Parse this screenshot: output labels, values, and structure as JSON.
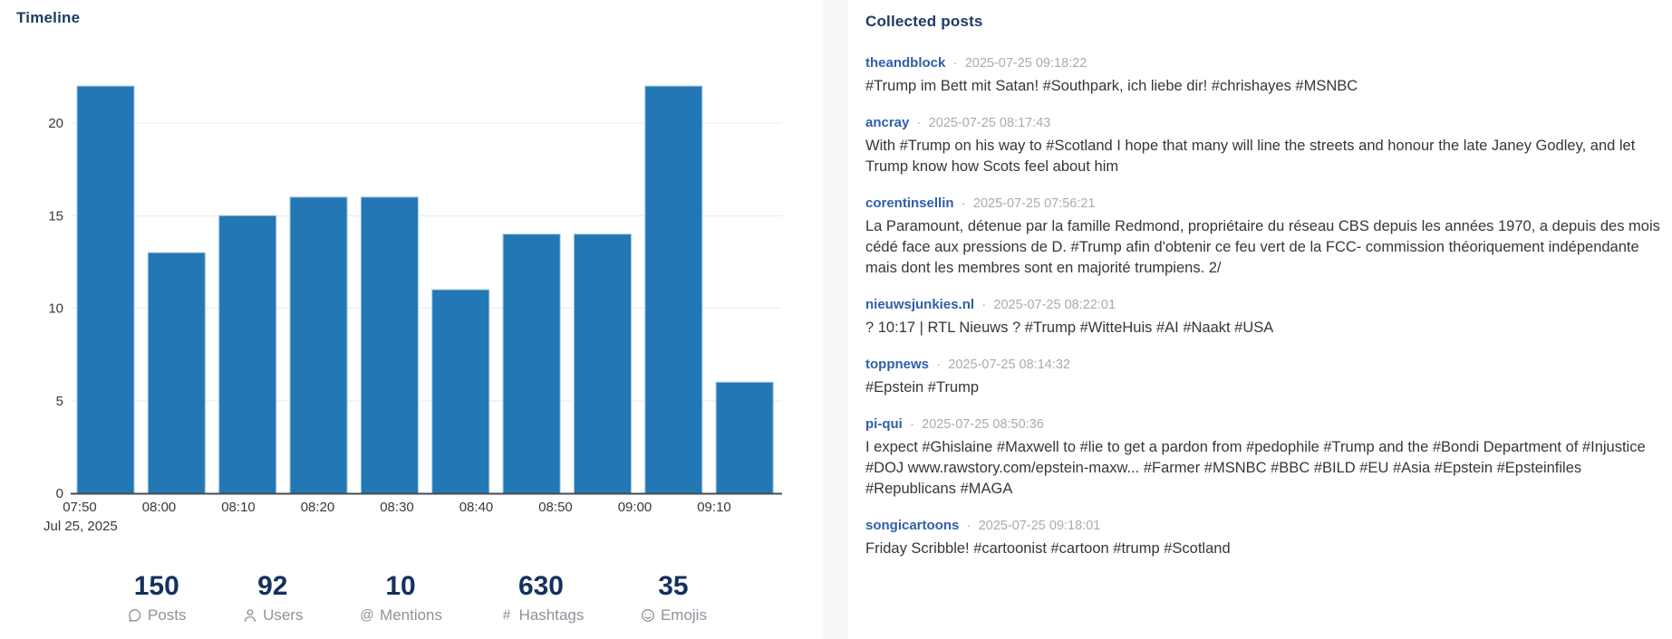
{
  "chart_data": {
    "type": "bar",
    "title": "Timeline",
    "values": [
      22,
      13,
      15,
      16,
      16,
      11,
      14,
      14,
      22,
      6
    ],
    "x_tick_labels": [
      "07:50",
      "08:00",
      "08:10",
      "08:20",
      "08:30",
      "08:40",
      "08:50",
      "09:00",
      "09:10"
    ],
    "x_date_label": "Jul 25, 2025",
    "y_ticks": [
      0,
      5,
      10,
      15,
      20
    ],
    "ylim": [
      0,
      23
    ],
    "grid": true,
    "legend": "none",
    "bar_color": "#2277b4",
    "bar_edge_color": "#9fc6e0",
    "grid_color": "#e8eaed",
    "axis_line_color": "#444b54",
    "tick_label_color": "#333a42"
  },
  "stats": [
    {
      "value": "150",
      "label": "Posts",
      "icon": "speech-bubble-icon"
    },
    {
      "value": "92",
      "label": "Users",
      "icon": "user-icon"
    },
    {
      "value": "10",
      "label": "Mentions",
      "icon": "at-icon"
    },
    {
      "value": "630",
      "label": "Hashtags",
      "icon": "hash-icon"
    },
    {
      "value": "35",
      "label": "Emojis",
      "icon": "smiley-icon"
    }
  ],
  "posts_panel": {
    "title": "Collected posts",
    "separator": "·",
    "posts": [
      {
        "author": "theandblock",
        "timestamp": "2025-07-25 09:18:22",
        "text": "#Trump im Bett mit Satan! #Southpark, ich liebe dir! #chrishayes #MSNBC"
      },
      {
        "author": "ancray",
        "timestamp": "2025-07-25 08:17:43",
        "text": "With #Trump on his way to #Scotland I hope that many will line the streets and honour the late Janey Godley, and let Trump know how Scots feel about him"
      },
      {
        "author": "corentinsellin",
        "timestamp": "2025-07-25 07:56:21",
        "text": "La Paramount, détenue par la famille Redmond, propriétaire du réseau CBS depuis les années 1970, a depuis des mois cédé face aux pressions de D. #Trump afin d'obtenir ce feu vert de la FCC- commission théoriquement indépendante mais dont les membres sont en majorité trumpiens. 2/"
      },
      {
        "author": "nieuwsjunkies.nl",
        "timestamp": "2025-07-25 08:22:01",
        "text": "? 10:17 | RTL Nieuws ? #Trump #WitteHuis #AI #Naakt #USA"
      },
      {
        "author": "toppnews",
        "timestamp": "2025-07-25 08:14:32",
        "text": "#Epstein #Trump"
      },
      {
        "author": "pi-qui",
        "timestamp": "2025-07-25 08:50:36",
        "text": "I expect #Ghislaine #Maxwell to #lie to get a pardon from #pedophile #Trump and the #Bondi Department of #Injustice #DOJ www.rawstory.com/epstein-maxw... #Farmer #MSNBC #BBC #BILD #EU #Asia #Epstein #Epsteinfiles #Republicans #MAGA"
      },
      {
        "author": "songicartoons",
        "timestamp": "2025-07-25 09:18:01",
        "text": "Friday Scribble! #cartoonist #cartoon #trump #Scotland"
      }
    ]
  }
}
